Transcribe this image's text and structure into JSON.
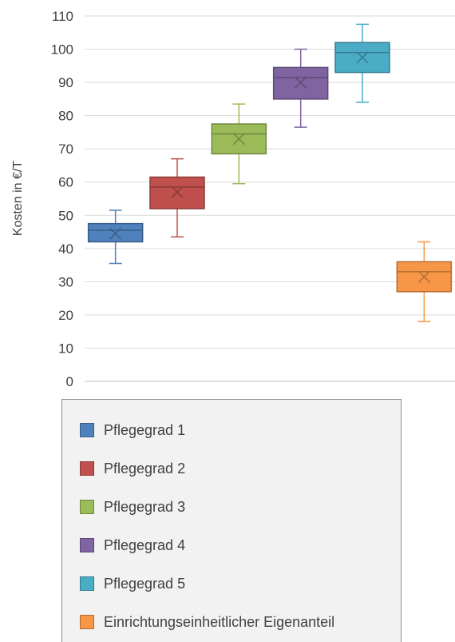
{
  "chart_data": {
    "type": "box",
    "ylabel": "Kosten in €/T",
    "xlabel": "",
    "ylim": [
      0,
      110
    ],
    "yticks": [
      0,
      10,
      20,
      30,
      40,
      50,
      60,
      70,
      80,
      90,
      100,
      110
    ],
    "grid": true,
    "legend_position": "bottom",
    "series": [
      {
        "name": "Pflegegrad 1",
        "color": "#4f81bd",
        "min": 35.5,
        "q1": 42,
        "median": 45.5,
        "q3": 47.5,
        "max": 51.5,
        "mean": 44.5
      },
      {
        "name": "Pflegegrad 2",
        "color": "#c0504d",
        "min": 43.5,
        "q1": 52,
        "median": 58.5,
        "q3": 61.5,
        "max": 67,
        "mean": 57
      },
      {
        "name": "Pflegegrad 3",
        "color": "#9bbb59",
        "min": 59.5,
        "q1": 68.5,
        "median": 74.5,
        "q3": 77.5,
        "max": 83.5,
        "mean": 73
      },
      {
        "name": "Pflegegrad 4",
        "color": "#8064a2",
        "min": 76.5,
        "q1": 85,
        "median": 91.5,
        "q3": 94.5,
        "max": 100,
        "mean": 90
      },
      {
        "name": "Pflegegrad 5",
        "color": "#4bacc6",
        "min": 84,
        "q1": 93,
        "median": 99,
        "q3": 102,
        "max": 107.5,
        "mean": 97.5
      },
      {
        "name": "Einrichtungseinheitlicher Eigenanteil",
        "color": "#f79646",
        "min": 18,
        "q1": 27,
        "median": 33,
        "q3": 36,
        "max": 42,
        "mean": 31.5
      }
    ]
  }
}
